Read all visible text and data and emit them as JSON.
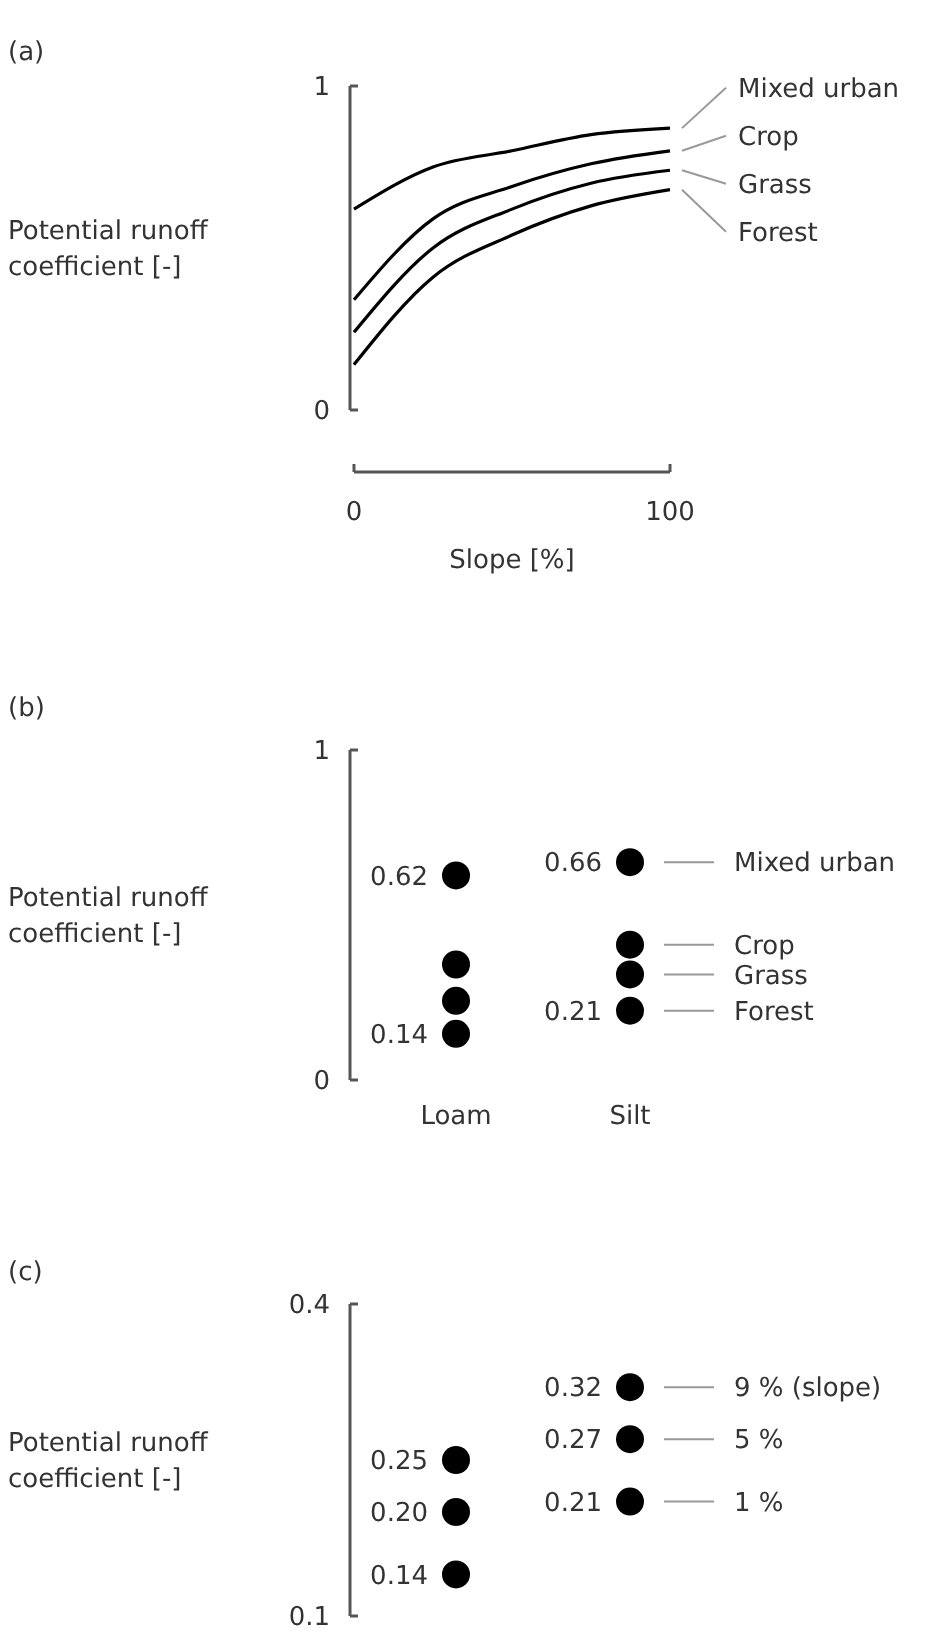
{
  "chart_data": [
    {
      "type": "line",
      "annotations": [
        "(a)"
      ],
      "xlabel": "Slope [%]",
      "ylabel": "Potential runoff coefficient [-]",
      "x": [
        0,
        25,
        50,
        75,
        100
      ],
      "xlim": [
        0,
        100
      ],
      "xticks": [
        0,
        100
      ],
      "ylim": [
        0,
        1
      ],
      "yticks": [
        0,
        1
      ],
      "series": [
        {
          "name": "Mixed urban",
          "color": "#000000",
          "values": [
            0.62,
            0.75,
            0.8,
            0.85,
            0.87
          ]
        },
        {
          "name": "Crop",
          "color": "#000000",
          "values": [
            0.34,
            0.59,
            0.69,
            0.76,
            0.8
          ]
        },
        {
          "name": "Grass",
          "color": "#000000",
          "values": [
            0.24,
            0.5,
            0.62,
            0.7,
            0.74
          ]
        },
        {
          "name": "Forest",
          "color": "#000000",
          "values": [
            0.14,
            0.41,
            0.54,
            0.63,
            0.68
          ]
        }
      ]
    },
    {
      "type": "scatter",
      "annotations": [
        "(b)"
      ],
      "ylabel": "Potential runoff coefficient [-]",
      "categories": [
        "Loam",
        "Silt"
      ],
      "ylim": [
        0,
        1
      ],
      "yticks": [
        0,
        1
      ],
      "marker": "circle",
      "series": [
        {
          "name": "Mixed urban",
          "color": "#000000",
          "values": [
            0.62,
            0.66
          ],
          "value_labels": [
            "0.62",
            "0.66"
          ]
        },
        {
          "name": "Crop",
          "color": "#000000",
          "values": [
            0.35,
            0.41
          ],
          "value_labels": [
            null,
            null
          ]
        },
        {
          "name": "Grass",
          "color": "#000000",
          "values": [
            0.24,
            0.32
          ],
          "value_labels": [
            null,
            null
          ]
        },
        {
          "name": "Forest",
          "color": "#000000",
          "values": [
            0.14,
            0.21
          ],
          "value_labels": [
            "0.14",
            "0.21"
          ]
        }
      ]
    },
    {
      "type": "scatter",
      "annotations": [
        "(c)"
      ],
      "ylabel": "Potential runoff coefficient [-]",
      "categories": [
        null,
        null
      ],
      "ylim": [
        0.1,
        0.4
      ],
      "yticks": [
        0.1,
        0.4
      ],
      "tick_labels": "y",
      "marker": "circle",
      "series": [
        {
          "name": "9 % (slope)",
          "color": "#000000",
          "values": [
            0.25,
            0.32
          ],
          "value_labels": [
            "0.25",
            "0.32"
          ]
        },
        {
          "name": "5 %",
          "color": "#000000",
          "values": [
            0.2,
            0.27
          ],
          "value_labels": [
            "0.20",
            "0.27"
          ]
        },
        {
          "name": "1 %",
          "color": "#000000",
          "values": [
            0.14,
            0.21
          ],
          "value_labels": [
            "0.14",
            "0.21"
          ]
        }
      ]
    }
  ]
}
